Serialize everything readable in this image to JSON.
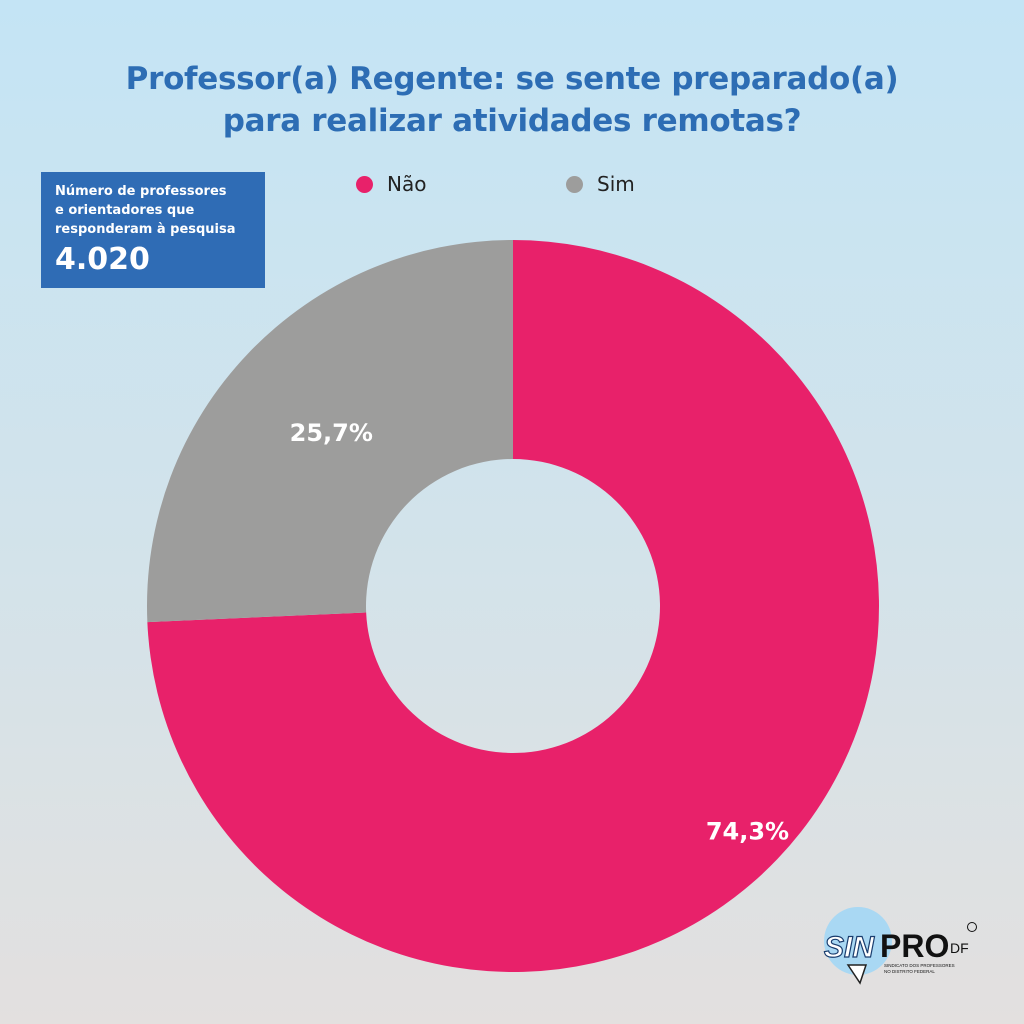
{
  "title_line1": "Professor(a) Regente: se sente preparado(a)",
  "title_line2": "para realizar atividades remotas?",
  "infobox": {
    "label_line1": "Número de professores",
    "label_line2": "e orientadores que",
    "label_line3": "responderam à pesquisa",
    "value": "4.020"
  },
  "logo": {
    "text": "SINPRO DF",
    "subtitle": "SINDICATO DOS PROFESSORES NO DISTRITO FEDERAL"
  },
  "chart_data": {
    "type": "pie",
    "variant": "donut",
    "title": "Professor(a) Regente: se sente preparado(a) para realizar atividades remotas?",
    "legend_position": "top",
    "slices": [
      {
        "label": "Não",
        "value": 74.3,
        "display": "74,3%",
        "color": "#e8216a"
      },
      {
        "label": "Sim",
        "value": 25.7,
        "display": "25,7%",
        "color": "#9d9d9c"
      }
    ]
  }
}
